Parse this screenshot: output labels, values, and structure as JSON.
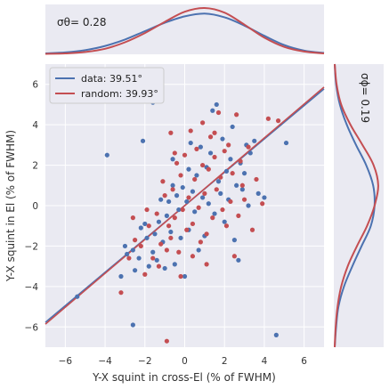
{
  "chart_data": {
    "type": "scatter",
    "main": {
      "xlabel": "Y-X squint in cross-El (% of FWHM)",
      "ylabel": "Y-X squint in El (% of FWHM)",
      "xlim": [
        -7,
        7
      ],
      "ylim": [
        -7,
        7
      ],
      "xticks": [
        -6,
        -4,
        -2,
        0,
        2,
        4,
        6
      ],
      "yticks": [
        -6,
        -4,
        -2,
        0,
        2,
        4,
        6
      ],
      "xtick_labels": [
        "−6",
        "−4",
        "−2",
        "0",
        "2",
        "4",
        "6"
      ],
      "ytick_labels": [
        "−6",
        "−4",
        "−2",
        "0",
        "2",
        "4",
        "6"
      ],
      "grid": true,
      "legend_position": "upper-left",
      "series": [
        {
          "name": "data: 39.51°",
          "color": "#4c72b0",
          "fit_slope_deg": 39.51,
          "fit_x_range": [
            -7,
            7
          ],
          "points": [
            [
              -5.4,
              -4.5
            ],
            [
              -3.9,
              2.5
            ],
            [
              -3.2,
              -3.5
            ],
            [
              -3.0,
              -2.0
            ],
            [
              -2.9,
              -2.4
            ],
            [
              -2.6,
              -2.2
            ],
            [
              -2.6,
              -5.9
            ],
            [
              -2.5,
              -3.2
            ],
            [
              -2.3,
              -2.6
            ],
            [
              -2.2,
              -1.1
            ],
            [
              -2.1,
              3.2
            ],
            [
              -1.9,
              -1.6
            ],
            [
              -1.8,
              -3.0
            ],
            [
              -1.6,
              5.1
            ],
            [
              -1.6,
              -2.3
            ],
            [
              -1.5,
              -1.4
            ],
            [
              -1.4,
              -2.7
            ],
            [
              -1.3,
              -0.8
            ],
            [
              -1.2,
              0.3
            ],
            [
              -1.1,
              -1.8
            ],
            [
              -1.0,
              -3.1
            ],
            [
              -0.9,
              -0.5
            ],
            [
              -0.8,
              0.2
            ],
            [
              -0.7,
              -1.3
            ],
            [
              -0.6,
              1.0
            ],
            [
              -0.5,
              -2.9
            ],
            [
              -0.4,
              0.5
            ],
            [
              -0.3,
              -0.2
            ],
            [
              -0.2,
              -1.6
            ],
            [
              -0.1,
              0.9
            ],
            [
              0.0,
              -3.5
            ],
            [
              0.1,
              0.2
            ],
            [
              0.2,
              -1.2
            ],
            [
              0.3,
              3.1
            ],
            [
              0.4,
              0.7
            ],
            [
              0.5,
              -0.3
            ],
            [
              0.6,
              1.5
            ],
            [
              0.7,
              -2.2
            ],
            [
              0.8,
              2.9
            ],
            [
              0.9,
              0.4
            ],
            [
              1.0,
              -1.5
            ],
            [
              1.1,
              1.9
            ],
            [
              1.2,
              0.1
            ],
            [
              1.3,
              2.6
            ],
            [
              1.4,
              4.7
            ],
            [
              1.5,
              -0.4
            ],
            [
              1.6,
              5.0
            ],
            [
              1.7,
              1.2
            ],
            [
              1.8,
              0.6
            ],
            [
              1.9,
              3.3
            ],
            [
              2.0,
              -0.8
            ],
            [
              2.1,
              1.7
            ],
            [
              2.2,
              0.3
            ],
            [
              2.3,
              2.3
            ],
            [
              2.4,
              3.9
            ],
            [
              2.5,
              -1.7
            ],
            [
              2.6,
              1.0
            ],
            [
              2.7,
              -2.7
            ],
            [
              2.8,
              2.1
            ],
            [
              2.9,
              0.8
            ],
            [
              3.0,
              1.6
            ],
            [
              3.1,
              3.0
            ],
            [
              3.2,
              0.0
            ],
            [
              3.3,
              2.6
            ],
            [
              3.5,
              3.2
            ],
            [
              3.7,
              0.6
            ],
            [
              4.0,
              0.4
            ],
            [
              4.6,
              -6.4
            ],
            [
              5.1,
              3.1
            ],
            [
              -0.6,
              2.3
            ],
            [
              0.2,
              1.8
            ],
            [
              -2.0,
              -0.9
            ]
          ],
          "kde_x": [
            [
              -7,
              0.02
            ],
            [
              -6,
              0.04
            ],
            [
              -5,
              0.09
            ],
            [
              -4,
              0.18
            ],
            [
              -3,
              0.32
            ],
            [
              -2,
              0.5
            ],
            [
              -1,
              0.68
            ],
            [
              0,
              0.82
            ],
            [
              1,
              0.88
            ],
            [
              2,
              0.8
            ],
            [
              3,
              0.62
            ],
            [
              4,
              0.4
            ],
            [
              5,
              0.2
            ],
            [
              6,
              0.08
            ],
            [
              7,
              0.03
            ]
          ],
          "kde_y": [
            [
              -7,
              0.02
            ],
            [
              -6,
              0.05
            ],
            [
              -5,
              0.1
            ],
            [
              -4,
              0.22
            ],
            [
              -3,
              0.4
            ],
            [
              -2,
              0.6
            ],
            [
              -1,
              0.8
            ],
            [
              0,
              0.88
            ],
            [
              1,
              0.85
            ],
            [
              2,
              0.7
            ],
            [
              3,
              0.48
            ],
            [
              4,
              0.28
            ],
            [
              5,
              0.13
            ],
            [
              6,
              0.05
            ],
            [
              7,
              0.02
            ]
          ]
        },
        {
          "name": "random: 39.93°",
          "color": "#c44e52",
          "fit_slope_deg": 39.93,
          "fit_x_range": [
            -7,
            7
          ],
          "points": [
            [
              -3.2,
              -4.3
            ],
            [
              -2.8,
              -2.6
            ],
            [
              -2.5,
              -1.7
            ],
            [
              -2.2,
              -2.0
            ],
            [
              -2.0,
              -3.4
            ],
            [
              -1.8,
              -1.0
            ],
            [
              -1.6,
              -2.6
            ],
            [
              -1.4,
              -0.4
            ],
            [
              -1.2,
              -1.9
            ],
            [
              -1.1,
              1.2
            ],
            [
              -1.0,
              0.5
            ],
            [
              -0.9,
              -2.2
            ],
            [
              -0.9,
              -6.7
            ],
            [
              -0.8,
              -1.0
            ],
            [
              -0.7,
              3.6
            ],
            [
              -0.6,
              0.8
            ],
            [
              -0.5,
              -0.6
            ],
            [
              -0.4,
              2.1
            ],
            [
              -0.3,
              -2.3
            ],
            [
              -0.2,
              1.5
            ],
            [
              -0.1,
              -0.2
            ],
            [
              0.0,
              2.5
            ],
            [
              0.1,
              -1.2
            ],
            [
              0.2,
              0.4
            ],
            [
              0.3,
              3.7
            ],
            [
              0.4,
              -0.9
            ],
            [
              0.5,
              1.3
            ],
            [
              0.6,
              2.8
            ],
            [
              0.7,
              -0.1
            ],
            [
              0.8,
              -1.8
            ],
            [
              0.9,
              2.0
            ],
            [
              1.0,
              0.6
            ],
            [
              1.1,
              -2.9
            ],
            [
              1.2,
              1.8
            ],
            [
              1.3,
              3.4
            ],
            [
              1.4,
              -0.6
            ],
            [
              1.5,
              2.4
            ],
            [
              1.6,
              0.8
            ],
            [
              1.7,
              4.6
            ],
            [
              1.8,
              1.4
            ],
            [
              1.9,
              -0.2
            ],
            [
              2.0,
              2.7
            ],
            [
              2.1,
              -1.0
            ],
            [
              2.2,
              3.0
            ],
            [
              2.3,
              0.2
            ],
            [
              2.4,
              1.6
            ],
            [
              2.6,
              4.5
            ],
            [
              2.7,
              -0.5
            ],
            [
              2.8,
              2.2
            ],
            [
              3.0,
              0.3
            ],
            [
              3.2,
              2.9
            ],
            [
              3.4,
              -1.2
            ],
            [
              3.6,
              1.3
            ],
            [
              3.9,
              0.1
            ],
            [
              4.2,
              4.3
            ],
            [
              4.7,
              4.2
            ],
            [
              -1.3,
              -3.0
            ],
            [
              -0.5,
              2.6
            ],
            [
              0.4,
              -2.5
            ],
            [
              1.5,
              3.6
            ],
            [
              -2.6,
              -0.6
            ],
            [
              2.5,
              -2.5
            ],
            [
              -1.9,
              -0.2
            ],
            [
              0.9,
              4.1
            ],
            [
              -0.2,
              -3.5
            ],
            [
              1.1,
              -1.4
            ],
            [
              2.9,
              1.0
            ],
            [
              -0.7,
              -1.6
            ]
          ],
          "kde_x": [
            [
              -7,
              0.01
            ],
            [
              -6,
              0.02
            ],
            [
              -5,
              0.05
            ],
            [
              -4,
              0.12
            ],
            [
              -3,
              0.26
            ],
            [
              -2,
              0.46
            ],
            [
              -1,
              0.7
            ],
            [
              0,
              0.92
            ],
            [
              1,
              1.0
            ],
            [
              2,
              0.9
            ],
            [
              3,
              0.64
            ],
            [
              4,
              0.36
            ],
            [
              5,
              0.16
            ],
            [
              6,
              0.06
            ],
            [
              7,
              0.02
            ]
          ],
          "kde_y": [
            [
              -7,
              0.02
            ],
            [
              -6,
              0.04
            ],
            [
              -5,
              0.08
            ],
            [
              -4,
              0.16
            ],
            [
              -3,
              0.3
            ],
            [
              -2,
              0.5
            ],
            [
              -1,
              0.72
            ],
            [
              0,
              0.88
            ],
            [
              1,
              0.96
            ],
            [
              2,
              0.86
            ],
            [
              3,
              0.62
            ],
            [
              4,
              0.36
            ],
            [
              5,
              0.16
            ],
            [
              6,
              0.06
            ],
            [
              7,
              0.02
            ]
          ]
        }
      ]
    },
    "annotations": {
      "sigma_theta": "σθ= 0.28",
      "sigma_phi": "σϕ= 0.19"
    }
  },
  "colors": {
    "panel_bg": "#eaeaf2",
    "grid": "#ffffff",
    "data": "#4c72b0",
    "random": "#c44e52"
  }
}
